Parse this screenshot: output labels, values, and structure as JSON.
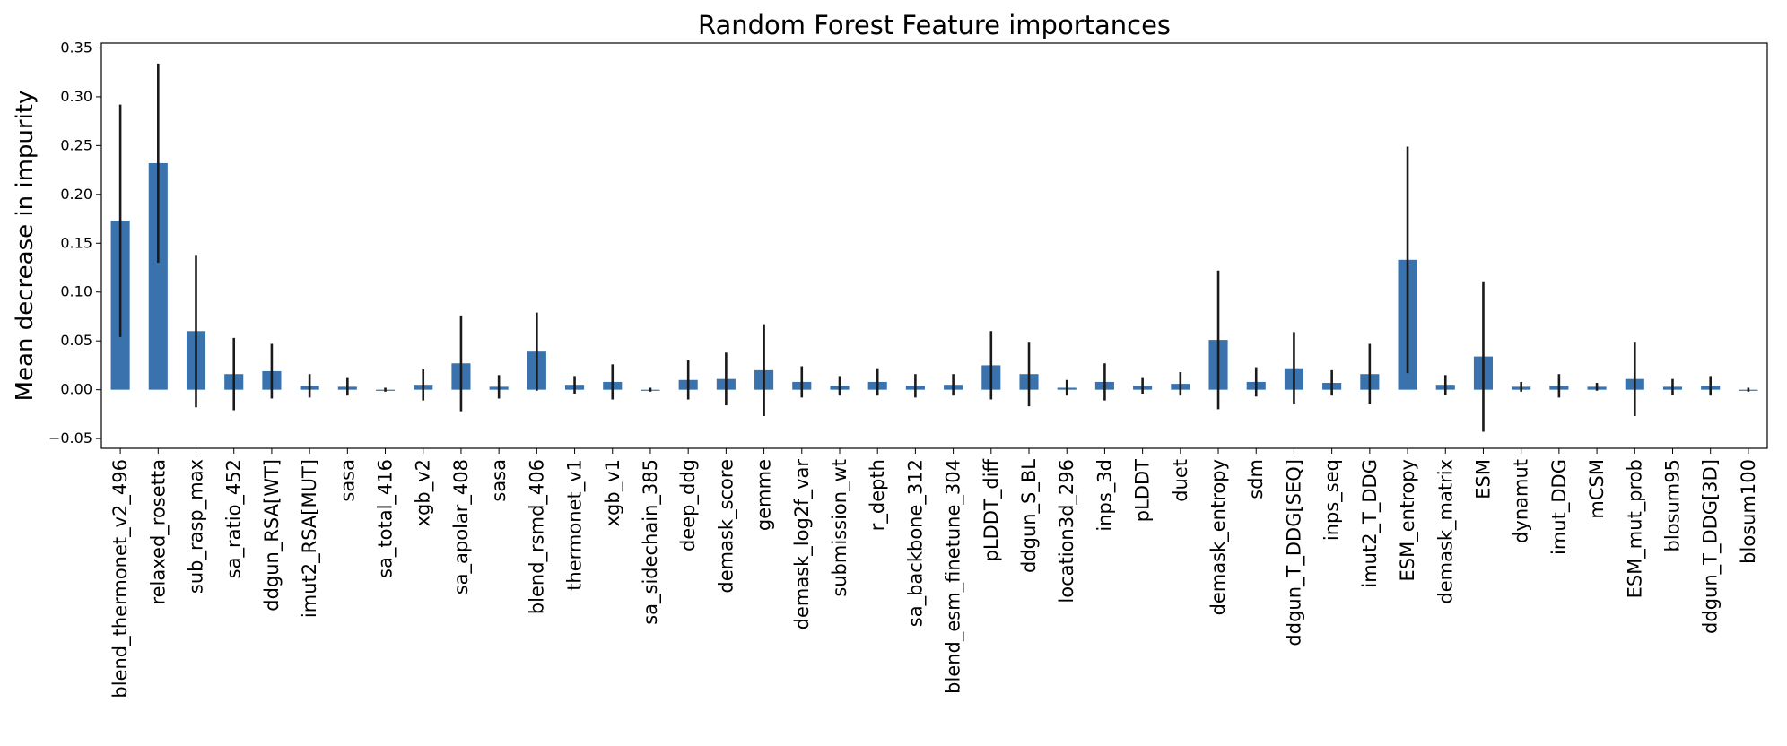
{
  "chart_data": {
    "type": "bar",
    "title": "Random Forest Feature importances",
    "ylabel": "Mean decrease in impurity",
    "xlabel": "",
    "ylim": [
      -0.06,
      0.355
    ],
    "yticks": [
      -0.05,
      0.0,
      0.05,
      0.1,
      0.15,
      0.2,
      0.25,
      0.3,
      0.35
    ],
    "ytick_labels": [
      "−0.05",
      "0.00",
      "0.05",
      "0.10",
      "0.15",
      "0.20",
      "0.25",
      "0.30",
      "0.35"
    ],
    "grid": false,
    "legend": "none",
    "bar_color": "#3a72ad",
    "error_color": "#1a1a1a",
    "categories": [
      "blend_thermonet_v2_496",
      "relaxed_rosetta",
      "sub_rasp_max",
      "sa_ratio_452",
      "ddgun_RSA[WT]",
      "imut2_RSA[MUT]",
      "sasa",
      "sa_total_416",
      "xgb_v2",
      "sa_apolar_408",
      "sasa",
      "blend_rsmd_406",
      "thermonet_v1",
      "xgb_v1",
      "sa_sidechain_385",
      "deep_ddg",
      "demask_score",
      "gemme",
      "demask_log2f_var",
      "submission_wt",
      "r_depth",
      "sa_backbone_312",
      "blend_esm_finetune_304",
      "pLDDT_diff",
      "ddgun_S_BL",
      "location3d_296",
      "inps_3d",
      "pLDDT",
      "duet",
      "demask_entropy",
      "sdm",
      "ddgun_T_DDG[SEQ]",
      "inps_seq",
      "imut2_T_DDG",
      "ESM_entropy",
      "demask_matrix",
      "ESM",
      "dynamut",
      "imut_DDG",
      "mCSM",
      "ESM_mut_prob",
      "blosum95",
      "ddgun_T_DDG[3D]",
      "blosum100"
    ],
    "values": [
      0.173,
      0.232,
      0.06,
      0.016,
      0.019,
      0.004,
      0.003,
      0.0,
      0.005,
      0.027,
      0.003,
      0.039,
      0.005,
      0.008,
      0.0,
      0.01,
      0.011,
      0.02,
      0.008,
      0.004,
      0.008,
      0.004,
      0.005,
      0.025,
      0.016,
      0.002,
      0.008,
      0.004,
      0.006,
      0.051,
      0.008,
      0.022,
      0.007,
      0.016,
      0.133,
      0.005,
      0.034,
      0.003,
      0.004,
      0.003,
      0.011,
      0.003,
      0.004,
      0.0
    ],
    "errors": [
      0.119,
      0.102,
      0.078,
      0.037,
      0.028,
      0.012,
      0.009,
      0.002,
      0.016,
      0.049,
      0.012,
      0.04,
      0.009,
      0.018,
      0.002,
      0.02,
      0.027,
      0.047,
      0.016,
      0.01,
      0.014,
      0.012,
      0.011,
      0.035,
      0.033,
      0.008,
      0.019,
      0.008,
      0.012,
      0.071,
      0.015,
      0.037,
      0.013,
      0.031,
      0.116,
      0.01,
      0.077,
      0.005,
      0.012,
      0.004,
      0.038,
      0.008,
      0.01,
      0.002
    ]
  }
}
